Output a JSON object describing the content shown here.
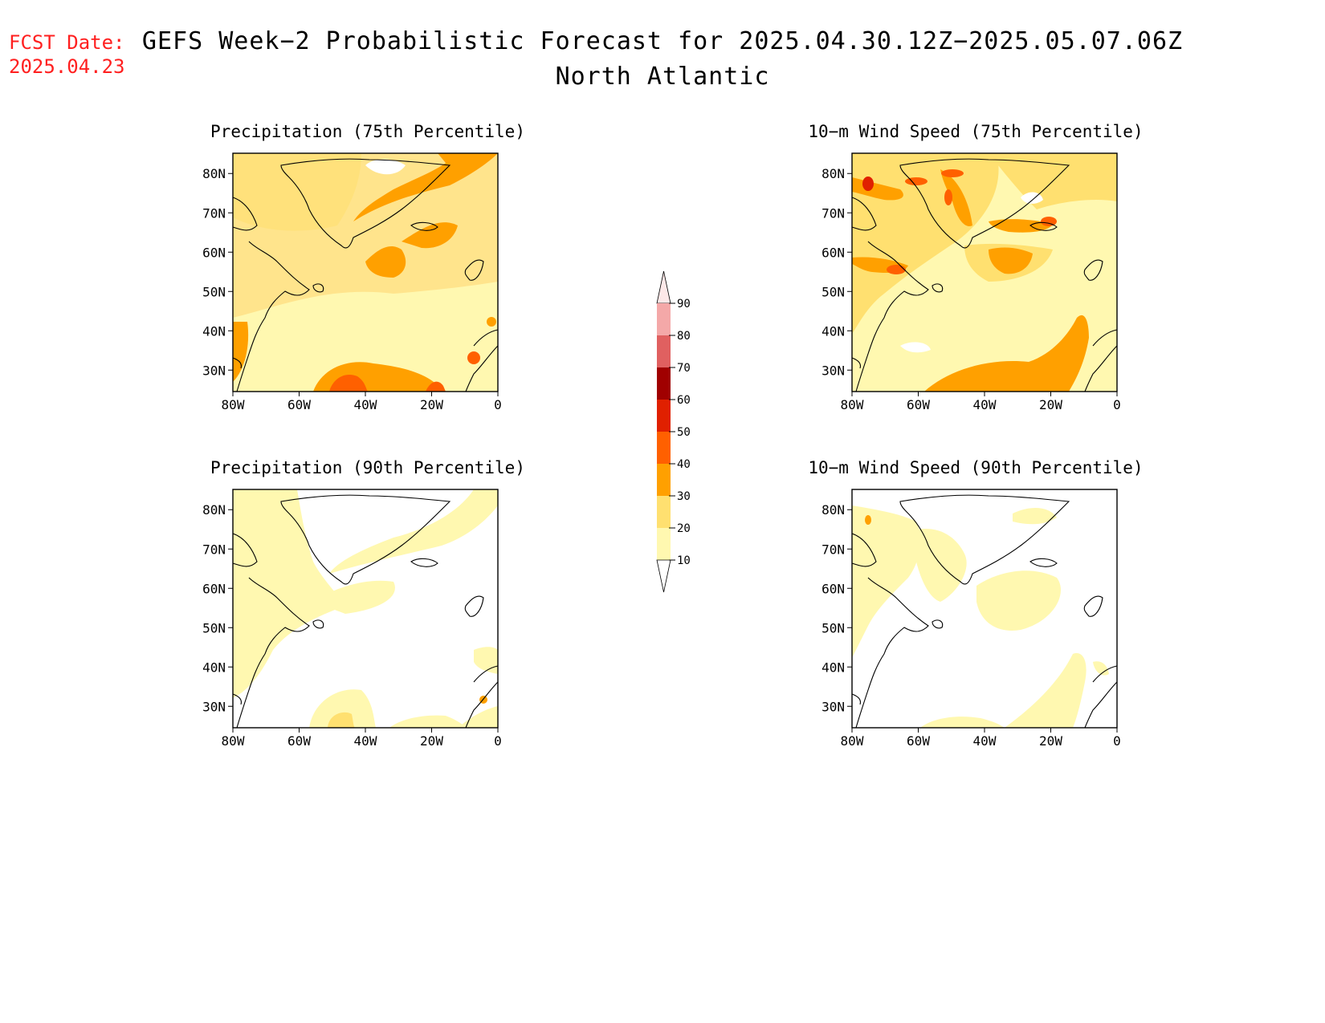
{
  "header": {
    "fcst_label": "FCST Date:",
    "fcst_date": "2025.04.23",
    "title": "GEFS Week−2 Probabilistic Forecast for 2025.04.30.12Z−2025.05.07.06Z",
    "region": "North Atlantic"
  },
  "panels": [
    {
      "id": "precip75",
      "title": "Precipitation (75th Percentile)"
    },
    {
      "id": "wind75",
      "title": "10−m Wind Speed (75th Percentile)"
    },
    {
      "id": "precip90",
      "title": "Precipitation (90th Percentile)"
    },
    {
      "id": "wind90",
      "title": "10−m Wind Speed (90th Percentile)"
    }
  ],
  "axes": {
    "lat_ticks": [
      "80N",
      "70N",
      "60N",
      "50N",
      "40N",
      "30N"
    ],
    "lon_ticks": [
      "80W",
      "60W",
      "40W",
      "20W",
      "0"
    ]
  },
  "colorbar": {
    "labels": [
      "90",
      "80",
      "70",
      "60",
      "50",
      "40",
      "30",
      "20",
      "10"
    ],
    "colors": [
      "#fde8e8",
      "#f4a8a8",
      "#e06060",
      "#a00000",
      "#e02000",
      "#ff6000",
      "#ffa000",
      "#ffe070",
      "#fff8b0"
    ]
  }
}
